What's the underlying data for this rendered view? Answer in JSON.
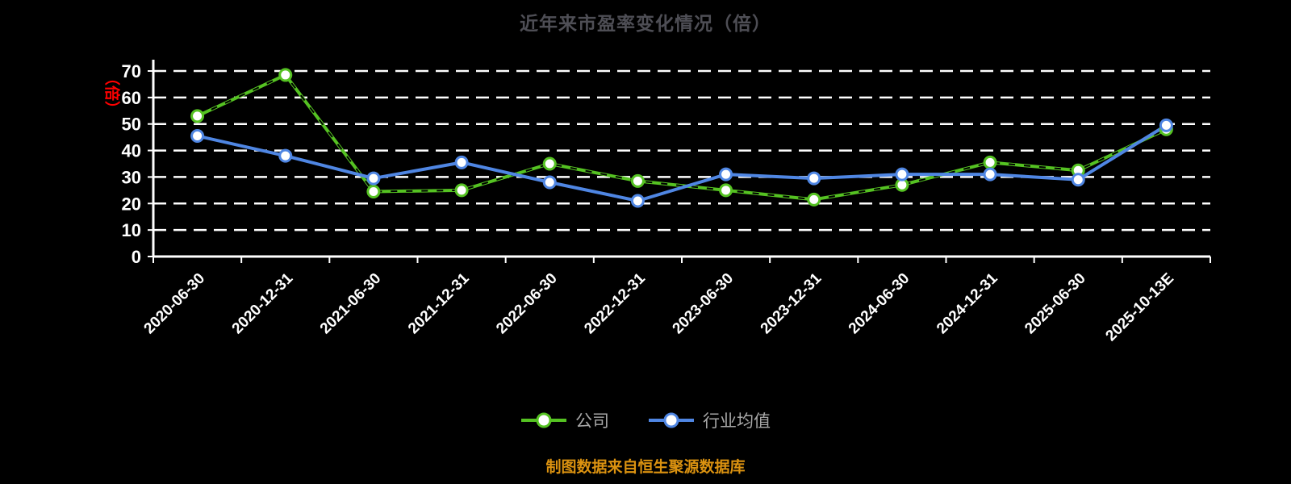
{
  "title": "近年来市盈率变化情况（倍）",
  "y_axis_unit": "（倍）",
  "footer": "制图数据来自恒生聚源数据库",
  "colors": {
    "background": "#000000",
    "title": "#4e4e55",
    "axis": "#ffffff",
    "gridline": "#ffffff",
    "y_unit": "#ff0000",
    "legend_text": "#a8a8a8",
    "footer": "#db9210",
    "company_series": "#55c222",
    "industry_series": "#4f86e3"
  },
  "chart_data": {
    "type": "line",
    "title": "近年来市盈率变化情况（倍）",
    "xlabel": "",
    "ylabel": "（倍）",
    "ylim": [
      0,
      70
    ],
    "yticks": [
      0,
      10,
      20,
      30,
      40,
      50,
      60,
      70
    ],
    "grid": "horizontal-dashed",
    "legend_position": "bottom",
    "categories": [
      "2020-06-30",
      "2020-12-31",
      "2021-06-30",
      "2021-12-31",
      "2022-06-30",
      "2022-12-31",
      "2023-06-30",
      "2023-12-31",
      "2024-06-30",
      "2024-12-31",
      "2025-06-30",
      "2025-10-13E"
    ],
    "series": [
      {
        "name": "公司",
        "color": "#55c222",
        "dash_overlay": true,
        "values": [
          53,
          68.5,
          24.5,
          25,
          35,
          28.5,
          25,
          21.5,
          27,
          35.5,
          32.5,
          48
        ]
      },
      {
        "name": "行业均值",
        "color": "#4f86e3",
        "dash_overlay": false,
        "values": [
          45.5,
          38,
          29.5,
          35.5,
          28,
          21,
          31,
          29.5,
          31,
          31,
          29,
          49.5
        ]
      }
    ]
  }
}
